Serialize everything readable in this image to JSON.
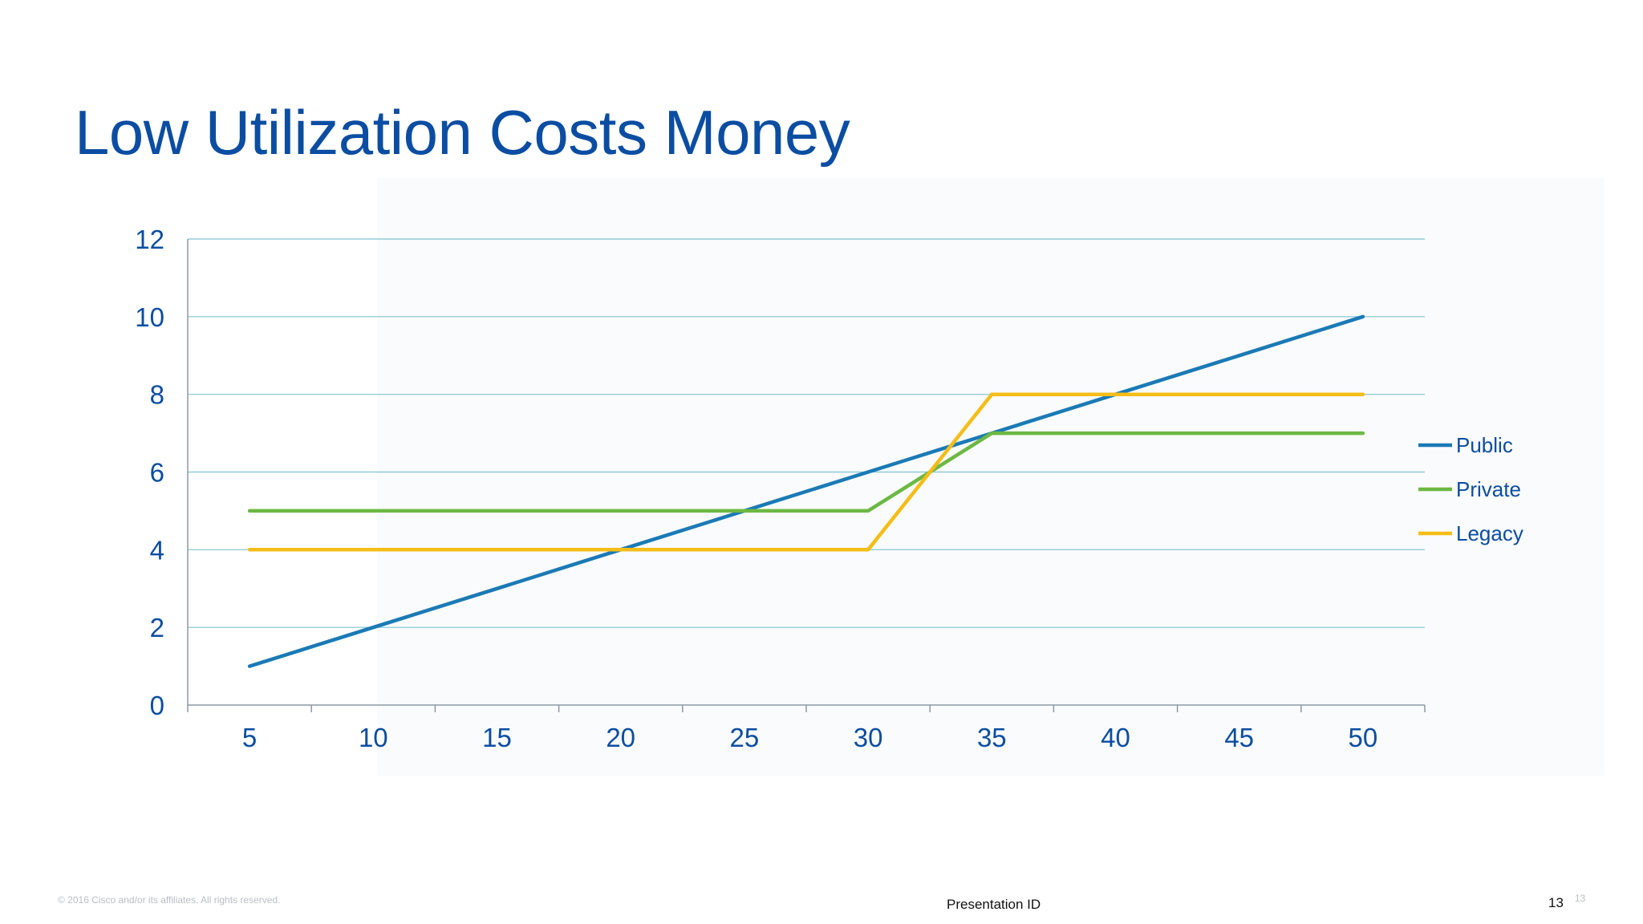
{
  "slide": {
    "title": "Low Utilization Costs Money"
  },
  "footer": {
    "copyright": "© 2016 Cisco and/or its affiliates. All rights reserved.",
    "presentation_id": "Presentation ID",
    "page_number": "13",
    "page_number_faint": "13"
  },
  "chart_data": {
    "type": "line",
    "title": "",
    "xlabel": "",
    "ylabel": "",
    "categories": [
      5,
      10,
      15,
      20,
      25,
      30,
      35,
      40,
      45,
      50
    ],
    "ylim": [
      0,
      12
    ],
    "yticks": [
      0,
      2,
      4,
      6,
      8,
      10,
      12
    ],
    "grid": true,
    "legend_position": "right",
    "series": [
      {
        "name": "Public",
        "color": "#1a7ab6",
        "values": [
          1,
          2,
          3,
          4,
          5,
          6,
          7,
          8,
          9,
          10
        ]
      },
      {
        "name": "Private",
        "color": "#6cb843",
        "values": [
          5,
          5,
          5,
          5,
          5,
          5,
          7,
          7,
          7,
          7
        ]
      },
      {
        "name": "Legacy",
        "color": "#f5bd18",
        "values": [
          4,
          4,
          4,
          4,
          4,
          4,
          8,
          8,
          8,
          8
        ]
      }
    ]
  }
}
